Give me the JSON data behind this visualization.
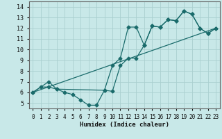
{
  "xlabel": "Humidex (Indice chaleur)",
  "xlim": [
    -0.5,
    23.5
  ],
  "ylim": [
    4.5,
    14.5
  ],
  "yticks": [
    5,
    6,
    7,
    8,
    9,
    10,
    11,
    12,
    13,
    14
  ],
  "xticks": [
    0,
    1,
    2,
    3,
    4,
    5,
    6,
    7,
    8,
    9,
    10,
    11,
    12,
    13,
    14,
    15,
    16,
    17,
    18,
    19,
    20,
    21,
    22,
    23
  ],
  "bg_color": "#c8e8e8",
  "grid_color": "#aacfcf",
  "line_color": "#1a6b6b",
  "series1_x": [
    0,
    1,
    2,
    3,
    4,
    5,
    6,
    7,
    8,
    9,
    10,
    11,
    12,
    13,
    14,
    15,
    16,
    17,
    18,
    19,
    20,
    21,
    22,
    23
  ],
  "series1_y": [
    6.0,
    6.5,
    6.5,
    6.3,
    6.0,
    5.8,
    5.3,
    4.8,
    4.8,
    6.2,
    6.1,
    8.5,
    9.2,
    9.2,
    10.4,
    12.2,
    12.1,
    12.8,
    12.7,
    13.6,
    13.3,
    12.0,
    11.5,
    12.0
  ],
  "series2_x": [
    0,
    2,
    3,
    9,
    10,
    11,
    12,
    13,
    14,
    15,
    16,
    17,
    18,
    19,
    20,
    21,
    22,
    23
  ],
  "series2_y": [
    6.0,
    7.0,
    6.3,
    6.2,
    8.5,
    9.2,
    12.1,
    12.1,
    10.4,
    12.2,
    12.1,
    12.8,
    12.7,
    13.6,
    13.3,
    12.0,
    11.5,
    12.0
  ],
  "line1_x": [
    0,
    23
  ],
  "line1_y": [
    6.0,
    12.0
  ],
  "marker_size": 2.5,
  "linewidth": 0.9
}
